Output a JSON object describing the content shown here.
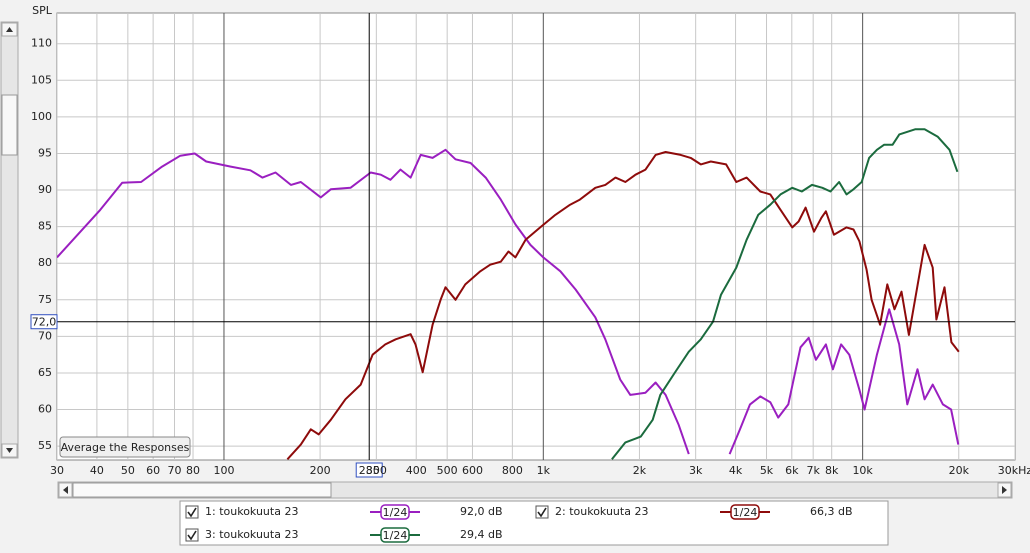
{
  "chart_data": {
    "type": "line",
    "y_label": "SPL",
    "xscale": "log",
    "grid": true,
    "xlim": [
      30,
      30000
    ],
    "ylim": [
      53.1,
      114.2
    ],
    "xticks": [
      30,
      40,
      50,
      60,
      70,
      80,
      100,
      200,
      300,
      400,
      500,
      600,
      800,
      {
        "value": 1000,
        "label": "1k"
      },
      {
        "value": 2000,
        "label": "2k"
      },
      {
        "value": 3000,
        "label": "3k"
      },
      {
        "value": 4000,
        "label": "4k"
      },
      {
        "value": 5000,
        "label": "5k"
      },
      {
        "value": 6000,
        "label": "6k"
      },
      {
        "value": 7000,
        "label": "7k"
      },
      {
        "value": 8000,
        "label": "8k"
      },
      {
        "value": 10000,
        "label": "10k"
      },
      {
        "value": 20000,
        "label": "20k"
      },
      {
        "value": 30000,
        "label": "30kHz"
      }
    ],
    "yticks": [
      55,
      60,
      65,
      70,
      75,
      80,
      85,
      90,
      95,
      100,
      105,
      110
    ],
    "cursor": {
      "x": 285,
      "y": {
        "value": 72.0,
        "label": "72,0"
      }
    },
    "button": "Average the Responses",
    "series": [
      {
        "name": "1: toukokuuta 23",
        "color": "#9a1fc0",
        "smoothing": "1/24",
        "cursor_value": {
          "value": 92.0,
          "label": "92,0 dB"
        },
        "x": [
          30,
          41,
          48,
          55,
          64,
          73,
          81,
          88,
          105,
          121,
          132,
          145,
          162,
          174,
          201,
          216,
          249,
          288,
          310,
          332,
          357,
          384,
          413,
          450,
          494,
          531,
          592,
          660,
          736,
          818,
          911,
          1000,
          1131,
          1262,
          1455,
          1564,
          1741,
          1873,
          2090,
          2247,
          2416,
          2655,
          2855,
          null,
          3833,
          4130,
          4440,
          4780,
          5140,
          5440,
          5850,
          6390,
          6780,
          7140,
          7670,
          8070,
          8560,
          9080,
          9770,
          10140,
          11080,
          12110,
          13020,
          13800,
          14850,
          15630,
          16570,
          17840,
          18920,
          19930
        ],
        "values": [
          80.8,
          87.3,
          91.0,
          91.1,
          93.2,
          94.7,
          95.0,
          93.9,
          93.2,
          92.7,
          91.7,
          92.4,
          90.7,
          91.1,
          89.0,
          90.1,
          90.3,
          92.4,
          92.1,
          91.4,
          92.8,
          91.7,
          94.8,
          94.4,
          95.5,
          94.2,
          93.7,
          91.7,
          88.7,
          85.3,
          82.5,
          80.8,
          78.9,
          76.4,
          72.6,
          69.6,
          64.1,
          62.0,
          62.3,
          63.7,
          62.0,
          57.9,
          53.9,
          null,
          53.9,
          57.3,
          60.7,
          61.8,
          61.0,
          58.9,
          60.7,
          68.5,
          69.8,
          66.8,
          68.9,
          65.5,
          68.9,
          67.5,
          62.7,
          60.0,
          67.5,
          73.7,
          68.9,
          60.7,
          65.5,
          61.4,
          63.4,
          60.7,
          60.0,
          55.2
        ]
      },
      {
        "name": "2: toukokuuta 23",
        "color": "#8e0b0b",
        "smoothing": "1/24",
        "cursor_value": {
          "value": 66.3,
          "label": "66,3 dB"
        },
        "x": [
          158,
          174,
          187,
          198,
          216,
          240,
          268,
          292,
          320,
          345,
          384,
          398,
          419,
          450,
          477,
          494,
          531,
          570,
          635,
          682,
          736,
          778,
          818,
          880,
          978,
          1090,
          1213,
          1302,
          1455,
          1564,
          1683,
          1807,
          1944,
          2090,
          2247,
          2416,
          2693,
          2895,
          3113,
          3347,
          3737,
          4021,
          4330,
          4780,
          5140,
          5530,
          6020,
          6300,
          6630,
          7040,
          7430,
          7670,
          8130,
          8900,
          9360,
          9770,
          10290,
          10670,
          11340,
          11950,
          12580,
          13230,
          13960,
          15630,
          16570,
          17020,
          18040,
          18970,
          20000
        ],
        "values": [
          53.2,
          55.2,
          57.3,
          56.6,
          58.6,
          61.4,
          63.4,
          67.5,
          68.9,
          69.6,
          70.3,
          68.9,
          65.1,
          71.6,
          75.0,
          76.7,
          75.0,
          77.1,
          78.9,
          79.8,
          80.2,
          81.6,
          80.8,
          83.2,
          84.9,
          86.6,
          88.0,
          88.7,
          90.3,
          90.7,
          91.7,
          91.1,
          92.1,
          92.8,
          94.8,
          95.2,
          94.8,
          94.4,
          93.5,
          93.9,
          93.5,
          91.1,
          91.7,
          89.8,
          89.4,
          87.3,
          84.9,
          85.7,
          87.6,
          84.3,
          86.2,
          87.1,
          83.9,
          84.9,
          84.6,
          83.0,
          79.1,
          75.0,
          71.6,
          77.1,
          73.7,
          76.1,
          70.2,
          82.5,
          79.4,
          72.3,
          76.7,
          69.2,
          67.9
        ]
      },
      {
        "name": "3: toukokuuta 23",
        "color": "#1b6b3e",
        "smoothing": "1/24",
        "cursor_value": {
          "value": 29.4,
          "label": "29,4 dB"
        },
        "x": [
          1640,
          1807,
          2020,
          2200,
          2325,
          2595,
          2855,
          3113,
          3400,
          3600,
          4020,
          4330,
          4710,
          5140,
          5530,
          6020,
          6450,
          6940,
          7480,
          7930,
          8440,
          8900,
          9360,
          9930,
          10480,
          11080,
          11680,
          12410,
          13030,
          14600,
          15630,
          17170,
          18710,
          19800
        ],
        "values": [
          53.2,
          55.5,
          56.3,
          58.6,
          62.0,
          65.2,
          67.9,
          69.6,
          72.0,
          75.7,
          79.4,
          83.2,
          86.6,
          88.0,
          89.4,
          90.3,
          89.8,
          90.7,
          90.3,
          89.8,
          91.1,
          89.4,
          90.1,
          91.1,
          94.4,
          95.5,
          96.2,
          96.2,
          97.6,
          98.3,
          98.3,
          97.3,
          95.5,
          92.5
        ]
      }
    ]
  }
}
